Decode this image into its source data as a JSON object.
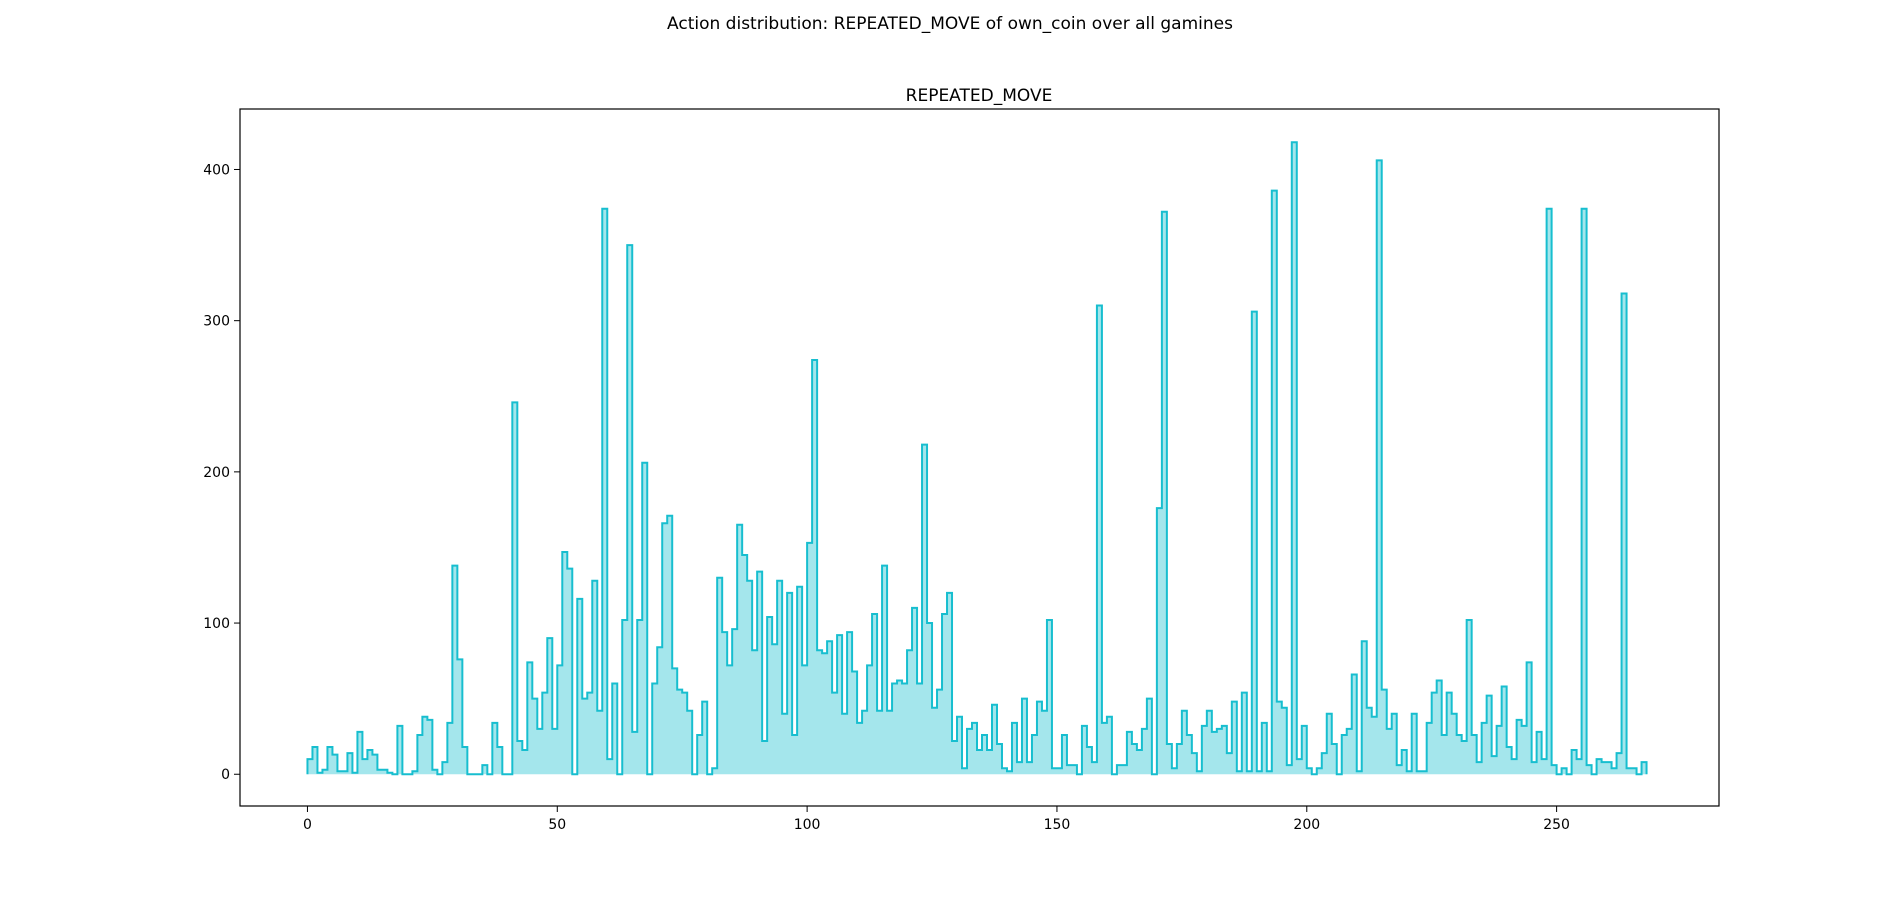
{
  "figure": {
    "suptitle": "Action distribution: REPEATED_MOVE of own_coin over all gamines"
  },
  "colors": {
    "line": "#17becf",
    "fill": "#a4e6ec"
  },
  "chart_data": {
    "type": "area",
    "title": "REPEATED_MOVE",
    "xlabel": "",
    "ylabel": "",
    "drawstyle": "step",
    "xlim": [
      -13.5,
      282.5
    ],
    "ylim": [
      -21,
      440
    ],
    "xticks": [
      0,
      50,
      100,
      150,
      200,
      250
    ],
    "yticks": [
      0,
      100,
      200,
      300,
      400
    ],
    "grid": false,
    "x_start": 0,
    "values": [
      10,
      18,
      1,
      3,
      18,
      13,
      2,
      2,
      14,
      1,
      28,
      10,
      16,
      13,
      3,
      3,
      1,
      0,
      32,
      0,
      0,
      2,
      26,
      38,
      36,
      3,
      0,
      8,
      34,
      138,
      76,
      18,
      0,
      0,
      0,
      6,
      0,
      34,
      18,
      0,
      0,
      246,
      22,
      16,
      74,
      50,
      30,
      54,
      90,
      30,
      72,
      147,
      136,
      0,
      116,
      50,
      54,
      128,
      42,
      374,
      10,
      60,
      0,
      102,
      350,
      28,
      102,
      206,
      0,
      60,
      84,
      166,
      171,
      70,
      56,
      54,
      42,
      0,
      26,
      48,
      0,
      4,
      130,
      94,
      72,
      96,
      165,
      145,
      128,
      82,
      134,
      22,
      104,
      86,
      128,
      40,
      120,
      26,
      124,
      72,
      153,
      274,
      82,
      80,
      88,
      54,
      92,
      40,
      94,
      68,
      34,
      42,
      72,
      106,
      42,
      138,
      42,
      60,
      62,
      60,
      82,
      110,
      60,
      218,
      100,
      44,
      56,
      106,
      120,
      22,
      38,
      4,
      30,
      34,
      16,
      26,
      16,
      46,
      20,
      4,
      2,
      34,
      8,
      50,
      8,
      26,
      48,
      42,
      102,
      4,
      4,
      26,
      6,
      6,
      0,
      32,
      18,
      8,
      310,
      34,
      38,
      0,
      6,
      6,
      28,
      20,
      16,
      30,
      50,
      0,
      176,
      372,
      20,
      4,
      20,
      42,
      26,
      14,
      2,
      32,
      42,
      28,
      30,
      32,
      14,
      48,
      2,
      54,
      2,
      306,
      2,
      34,
      2,
      386,
      48,
      44,
      6,
      418,
      10,
      32,
      4,
      0,
      4,
      14,
      40,
      20,
      0,
      26,
      30,
      66,
      2,
      88,
      44,
      38,
      406,
      56,
      30,
      40,
      6,
      16,
      2,
      40,
      2,
      2,
      34,
      54,
      62,
      26,
      54,
      40,
      26,
      22,
      102,
      26,
      8,
      34,
      52,
      12,
      32,
      58,
      18,
      10,
      36,
      32,
      74,
      8,
      28,
      10,
      374,
      6,
      0,
      4,
      0,
      16,
      10,
      374,
      6,
      0,
      10,
      8,
      8,
      4,
      14,
      318,
      4,
      4,
      0,
      8
    ]
  }
}
